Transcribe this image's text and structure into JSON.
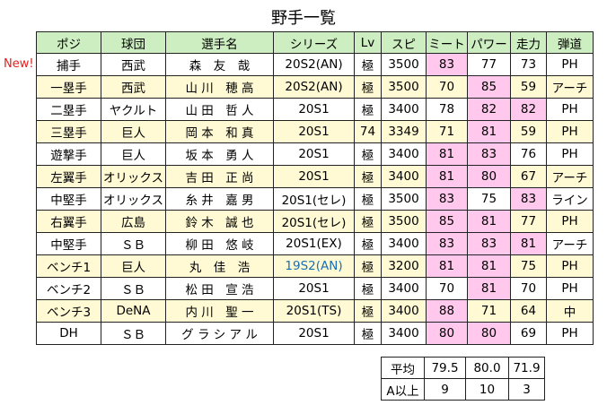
{
  "title": "野手一覧",
  "new_label": "New!",
  "colors": {
    "header_bg": "#cdeec0",
    "alt_row_bg": "#fffad4",
    "highlight_bg": "#ffc8ec",
    "special_text": "#1a6fb4",
    "new_text": "#e02020"
  },
  "table": {
    "headers": [
      "ポジ",
      "球団",
      "選手名",
      "シリーズ",
      "Lv",
      "スピ",
      "ミート",
      "パワー",
      "走力",
      "弾道"
    ],
    "rows": [
      {
        "cells": [
          "捕手",
          "西武",
          "森　友　哉",
          "20S2(AN)",
          "極",
          "3500",
          "83",
          "77",
          "73",
          "PH"
        ],
        "pink": [
          6
        ],
        "blue": []
      },
      {
        "cells": [
          "一塁手",
          "西武",
          "山 川　穂 高",
          "20S2(AN)",
          "極",
          "3500",
          "70",
          "85",
          "59",
          "アーチ"
        ],
        "pink": [
          7
        ],
        "blue": []
      },
      {
        "cells": [
          "二塁手",
          "ヤクルト",
          "山 田　哲 人",
          "20S1",
          "極",
          "3400",
          "78",
          "82",
          "82",
          "PH"
        ],
        "pink": [
          7,
          8
        ],
        "blue": []
      },
      {
        "cells": [
          "三塁手",
          "巨人",
          "岡 本　和 真",
          "20S1",
          "74",
          "3349",
          "71",
          "81",
          "59",
          "PH"
        ],
        "pink": [
          7
        ],
        "blue": []
      },
      {
        "cells": [
          "遊撃手",
          "巨人",
          "坂 本　勇 人",
          "20S1",
          "極",
          "3400",
          "81",
          "83",
          "76",
          "PH"
        ],
        "pink": [
          6,
          7
        ],
        "blue": []
      },
      {
        "cells": [
          "左翼手",
          "オリックス",
          "吉 田　正 尚",
          "20S1",
          "極",
          "3400",
          "81",
          "80",
          "67",
          "アーチ"
        ],
        "pink": [
          6,
          7
        ],
        "blue": []
      },
      {
        "cells": [
          "中堅手",
          "オリックス",
          "糸 井　嘉 男",
          "20S1(セレ)",
          "極",
          "3500",
          "83",
          "75",
          "83",
          "ライン"
        ],
        "pink": [
          6,
          8
        ],
        "blue": []
      },
      {
        "cells": [
          "右翼手",
          "広島",
          "鈴 木　誠 也",
          "20S1(セレ)",
          "極",
          "3500",
          "85",
          "81",
          "77",
          "PH"
        ],
        "pink": [
          6,
          7
        ],
        "blue": []
      },
      {
        "cells": [
          "中堅手",
          "ＳＢ",
          "柳 田　悠 岐",
          "20S1(EX)",
          "極",
          "3400",
          "83",
          "83",
          "81",
          "アーチ"
        ],
        "pink": [
          6,
          7,
          8
        ],
        "blue": []
      },
      {
        "cells": [
          "ベンチ1",
          "巨人",
          "丸　佳　浩",
          "19S2(AN)",
          "極",
          "3200",
          "81",
          "81",
          "75",
          "PH"
        ],
        "pink": [
          6,
          7
        ],
        "blue": [
          3
        ]
      },
      {
        "cells": [
          "ベンチ2",
          "ＳＢ",
          "松 田　宣 浩",
          "20S1",
          "極",
          "3400",
          "70",
          "81",
          "70",
          "PH"
        ],
        "pink": [
          7
        ],
        "blue": []
      },
      {
        "cells": [
          "ベンチ3",
          "DeNA",
          "内 川　聖 一",
          "20S1(TS)",
          "極",
          "3400",
          "88",
          "71",
          "64",
          "中"
        ],
        "pink": [
          6
        ],
        "blue": []
      },
      {
        "cells": [
          "DH",
          "ＳＢ",
          "グ ラ シ ア ル",
          "20S1",
          "極",
          "3400",
          "80",
          "80",
          "69",
          "PH"
        ],
        "pink": [
          6,
          7
        ],
        "blue": []
      }
    ]
  },
  "stats": {
    "rows": [
      {
        "label": "平均",
        "values": [
          "79.5",
          "80.0",
          "71.9"
        ]
      },
      {
        "label": "A以上",
        "values": [
          "9",
          "10",
          "3"
        ]
      }
    ]
  }
}
